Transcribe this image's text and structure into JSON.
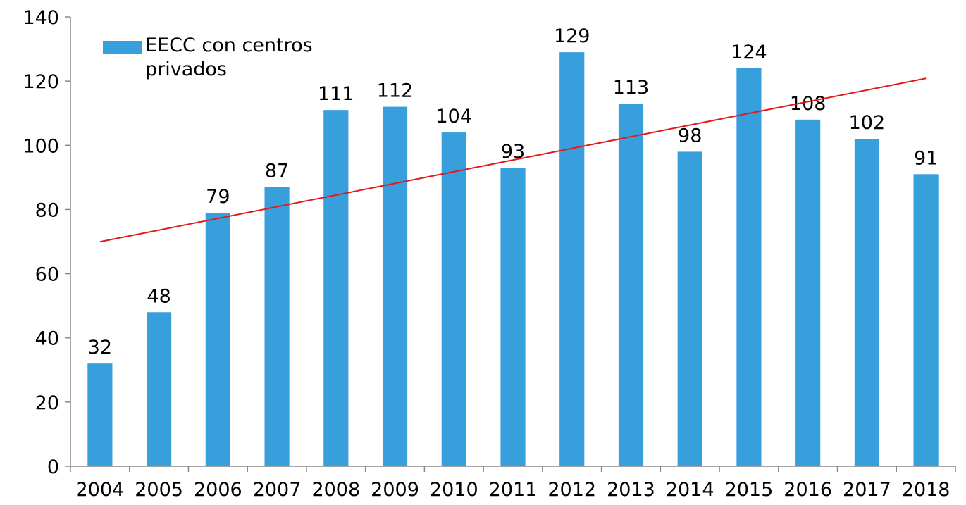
{
  "chart_data": {
    "type": "bar",
    "categories": [
      "2004",
      "2005",
      "2006",
      "2007",
      "2008",
      "2009",
      "2010",
      "2011",
      "2012",
      "2013",
      "2014",
      "2015",
      "2016",
      "2017",
      "2018"
    ],
    "series": [
      {
        "name": "EECC con centros privados",
        "color": "#389fdd",
        "values": [
          32,
          48,
          79,
          87,
          111,
          112,
          104,
          93,
          129,
          113,
          98,
          124,
          108,
          102,
          91
        ]
      }
    ],
    "ylim": [
      0,
      140
    ],
    "yticks": [
      0,
      20,
      40,
      60,
      80,
      100,
      120,
      140
    ],
    "data_labels": true,
    "trendline": "linear",
    "trendline_color": "#e31a1c",
    "legend": "top-left"
  }
}
